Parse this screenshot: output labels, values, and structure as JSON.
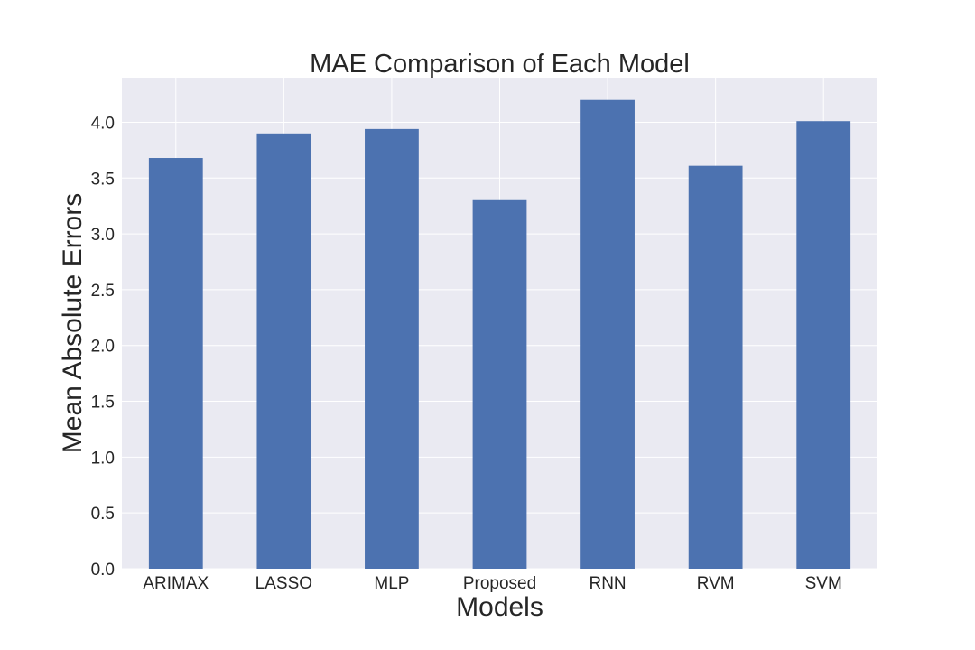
{
  "chart_data": {
    "type": "bar",
    "title": "MAE Comparison of Each Model",
    "xlabel": "Models",
    "ylabel": "Mean Absolute Errors",
    "categories": [
      "ARIMAX",
      "LASSO",
      "MLP",
      "Proposed",
      "RNN",
      "RVM",
      "SVM"
    ],
    "values": [
      3.68,
      3.9,
      3.94,
      3.31,
      4.2,
      3.61,
      4.01
    ],
    "ylim": [
      0,
      4.4
    ],
    "yticks": [
      0.0,
      0.5,
      1.0,
      1.5,
      2.0,
      2.5,
      3.0,
      3.5,
      4.0
    ],
    "ytick_labels": [
      "0.0",
      "0.5",
      "1.0",
      "1.5",
      "2.0",
      "2.5",
      "3.0",
      "3.5",
      "4.0"
    ],
    "grid": true,
    "legend": "none",
    "colors": {
      "bar": "#4c72b0",
      "background": "#eaeaf2",
      "grid": "#ffffff"
    }
  }
}
